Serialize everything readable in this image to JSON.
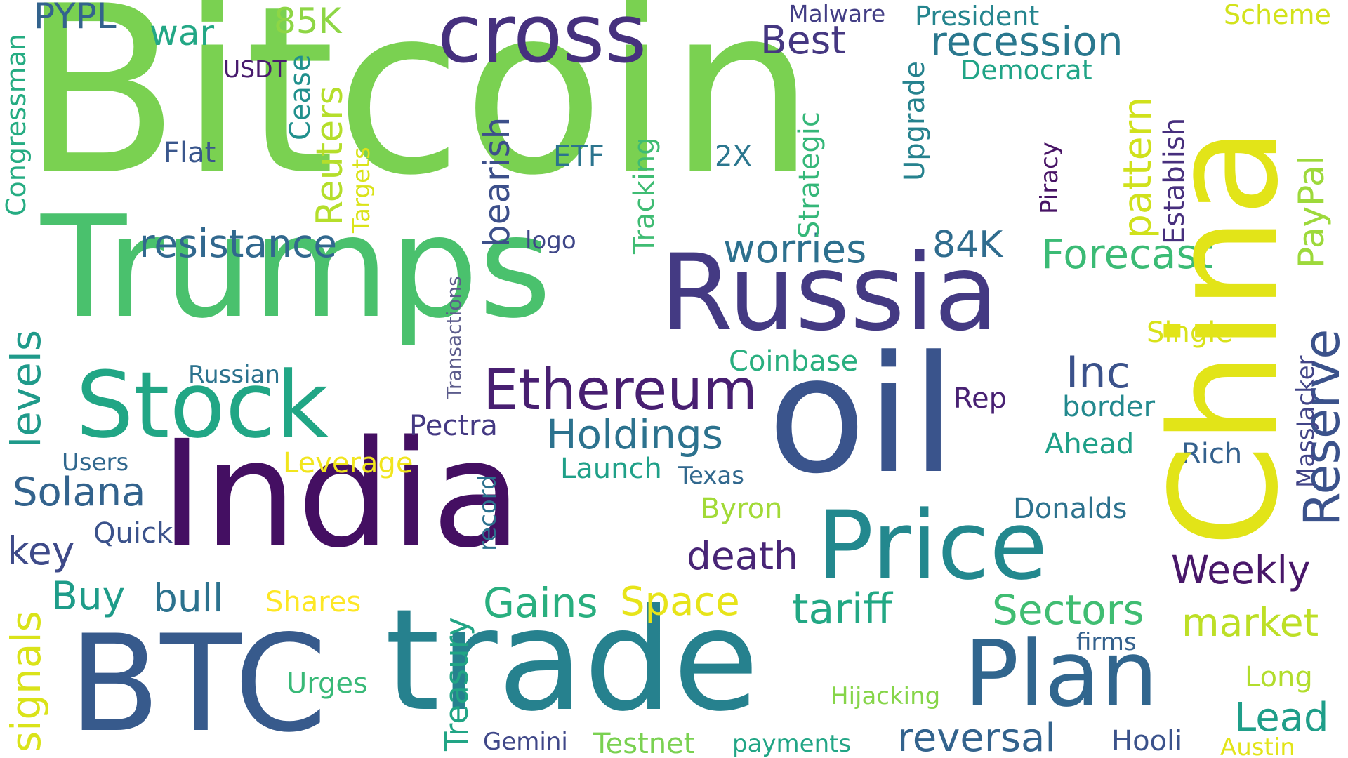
{
  "words": [
    {
      "text": "Bitcoin",
      "color": "#7ad151"
    },
    {
      "text": "Trumps",
      "color": "#4ac16d"
    },
    {
      "text": "India",
      "color": "#440f62"
    },
    {
      "text": "China",
      "color": "#e2e418"
    },
    {
      "text": "trade",
      "color": "#26818e"
    },
    {
      "text": "oil",
      "color": "#3a548c"
    },
    {
      "text": "BTC",
      "color": "#375a8c"
    },
    {
      "text": "Russia",
      "color": "#443a83"
    },
    {
      "text": "Stock",
      "color": "#21a685"
    },
    {
      "text": "Price",
      "color": "#23888e"
    },
    {
      "text": "Plan",
      "color": "#31668e"
    },
    {
      "text": "cross",
      "color": "#46317e"
    },
    {
      "text": "Ethereum",
      "color": "#481f71"
    },
    {
      "text": "Reserve",
      "color": "#3b528b"
    },
    {
      "text": "Best",
      "color": "#453781"
    },
    {
      "text": "recession",
      "color": "#2a788e"
    },
    {
      "text": "Holdings",
      "color": "#2c728e"
    },
    {
      "text": "Forecast",
      "color": "#3bbb75"
    },
    {
      "text": "resistance",
      "color": "#31688e"
    },
    {
      "text": "worries",
      "color": "#2d708e"
    },
    {
      "text": "84K",
      "color": "#2f6c8e"
    },
    {
      "text": "tariff",
      "color": "#22a884"
    },
    {
      "text": "Sectors",
      "color": "#40bd72"
    },
    {
      "text": "market",
      "color": "#bddf26"
    },
    {
      "text": "reversal",
      "color": "#33638d"
    },
    {
      "text": "Solana",
      "color": "#33638d"
    },
    {
      "text": "Inc",
      "color": "#3b528b"
    },
    {
      "text": "death",
      "color": "#482576"
    },
    {
      "text": "Weekly",
      "color": "#481769"
    },
    {
      "text": "Gains",
      "color": "#29af7f"
    },
    {
      "text": "Space",
      "color": "#e7e419"
    },
    {
      "text": "Buy",
      "color": "#1e9c89"
    },
    {
      "text": "bull",
      "color": "#2c728e"
    },
    {
      "text": "key",
      "color": "#3e4a89"
    },
    {
      "text": "Lead",
      "color": "#1f9e89"
    },
    {
      "text": "Treasury",
      "color": "#21a585"
    },
    {
      "text": "levels",
      "color": "#1f9a8a"
    },
    {
      "text": "signals",
      "color": "#dae319"
    },
    {
      "text": "Reuters",
      "color": "#b5de2b"
    },
    {
      "text": "bearish",
      "color": "#3c4f8a"
    },
    {
      "text": "pattern",
      "color": "#d0e11c"
    },
    {
      "text": "PayPal",
      "color": "#9dd93b"
    },
    {
      "text": "85K",
      "color": "#8ed645"
    },
    {
      "text": "PYPL",
      "color": "#33638d"
    },
    {
      "text": "war",
      "color": "#22a785"
    },
    {
      "text": "Malware",
      "color": "#433e85"
    },
    {
      "text": "President",
      "color": "#25858e"
    },
    {
      "text": "Scheme",
      "color": "#d2e21b"
    },
    {
      "text": "Democrat",
      "color": "#20a486"
    },
    {
      "text": "USDT",
      "color": "#481b6d"
    },
    {
      "text": "Cease",
      "color": "#21908d"
    },
    {
      "text": "Congressman",
      "color": "#25ac82"
    },
    {
      "text": "Flat",
      "color": "#39568c"
    },
    {
      "text": "Targets",
      "color": "#dae319"
    },
    {
      "text": "ETF",
      "color": "#2b748e"
    },
    {
      "text": "2X",
      "color": "#2a768e"
    },
    {
      "text": "Tracking",
      "color": "#3fbc73"
    },
    {
      "text": "Strategic",
      "color": "#35b779"
    },
    {
      "text": "Upgrade",
      "color": "#26828e"
    },
    {
      "text": "Piracy",
      "color": "#471365"
    },
    {
      "text": "Establish",
      "color": "#472f7d"
    },
    {
      "text": "Transactions",
      "color": "#5c5c8c"
    },
    {
      "text": "logo",
      "color": "#3f4788"
    },
    {
      "text": "Coinbase",
      "color": "#29af7f"
    },
    {
      "text": "Single",
      "color": "#d8e219"
    },
    {
      "text": "Russian",
      "color": "#2c738e"
    },
    {
      "text": "Rep",
      "color": "#482173"
    },
    {
      "text": "border",
      "color": "#23898e"
    },
    {
      "text": "Pectra",
      "color": "#443983"
    },
    {
      "text": "MassJacker",
      "color": "#414487"
    },
    {
      "text": "Ahead",
      "color": "#1fa088"
    },
    {
      "text": "Rich",
      "color": "#34618d"
    },
    {
      "text": "Users",
      "color": "#31688e"
    },
    {
      "text": "Leverage",
      "color": "#f1e51d"
    },
    {
      "text": "Launch",
      "color": "#1fa088"
    },
    {
      "text": "Texas",
      "color": "#31688e"
    },
    {
      "text": "record",
      "color": "#2c718e"
    },
    {
      "text": "Donalds",
      "color": "#2c728e"
    },
    {
      "text": "Byron",
      "color": "#a2da37"
    },
    {
      "text": "Quick",
      "color": "#3b528b"
    },
    {
      "text": "Shares",
      "color": "#fde725"
    },
    {
      "text": "Urges",
      "color": "#38b977"
    },
    {
      "text": "firms",
      "color": "#34618d"
    },
    {
      "text": "Long",
      "color": "#b2dd2d"
    },
    {
      "text": "Hijacking",
      "color": "#86d549"
    },
    {
      "text": "Gemini",
      "color": "#3f4788"
    },
    {
      "text": "Testnet",
      "color": "#7ad151"
    },
    {
      "text": "payments",
      "color": "#21a585"
    },
    {
      "text": "Hooli",
      "color": "#3b528b"
    },
    {
      "text": "Austin",
      "color": "#e2e418"
    }
  ]
}
